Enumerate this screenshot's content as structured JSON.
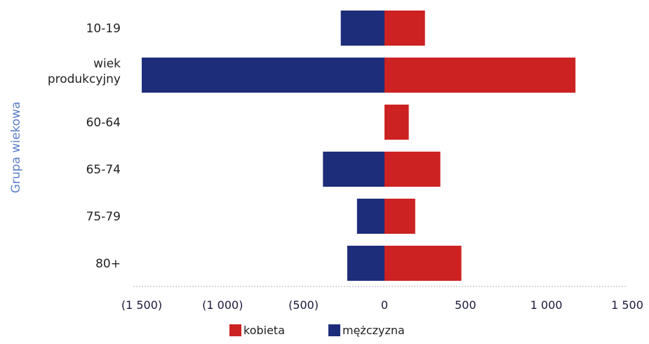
{
  "chart_data": {
    "type": "bar",
    "orientation": "horizontal",
    "stacking": "diverging",
    "categories": [
      "10-19",
      "wiek produkcyjny",
      "60-64",
      "65-74",
      "75-79",
      "80+"
    ],
    "series": [
      {
        "name": "kobieta",
        "color": "#cc2222",
        "values": [
          250,
          1180,
          150,
          345,
          190,
          475
        ]
      },
      {
        "name": "mężczyzna",
        "color": "#1e2d7a",
        "values": [
          -270,
          -1500,
          0,
          -380,
          -170,
          -230
        ]
      }
    ],
    "ylabel": "Grupa wiekowa",
    "xlim": [
      -1500,
      1500
    ],
    "x_ticks": [
      -1500,
      -1000,
      -500,
      0,
      500,
      1000,
      1500
    ],
    "x_tick_labels": [
      "(1 500)",
      "(1 000)",
      "(500)",
      "0",
      "500",
      "1 000",
      "1 500"
    ],
    "grid": false,
    "legend_position": "bottom"
  }
}
